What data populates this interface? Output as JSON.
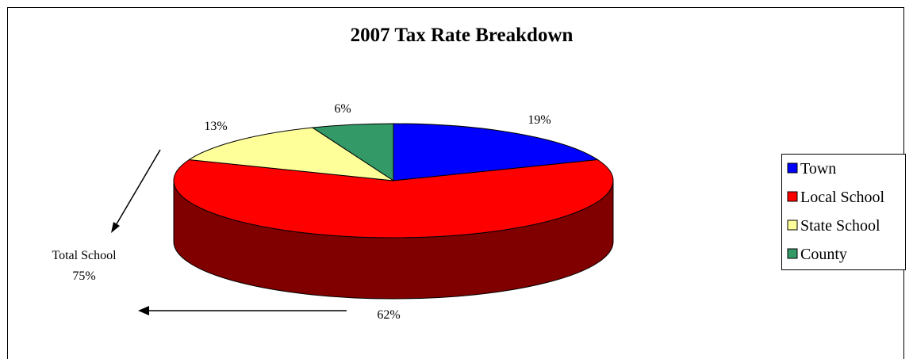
{
  "chart_data": {
    "type": "pie",
    "title": "2007 Tax Rate Breakdown",
    "categories": [
      "Town",
      "Local School",
      "State School",
      "County"
    ],
    "values": [
      19,
      62,
      13,
      6
    ],
    "data_labels": [
      "19%",
      "62%",
      "13%",
      "6%"
    ],
    "colors": [
      "#0000ff",
      "#ff0000",
      "#ffff99",
      "#339966"
    ],
    "side_colors": [
      "#00007a",
      "#800000",
      "#808047",
      "#194d33"
    ],
    "legend_position": "right",
    "annotation": {
      "line1": "Total School",
      "line2": "75%"
    }
  }
}
